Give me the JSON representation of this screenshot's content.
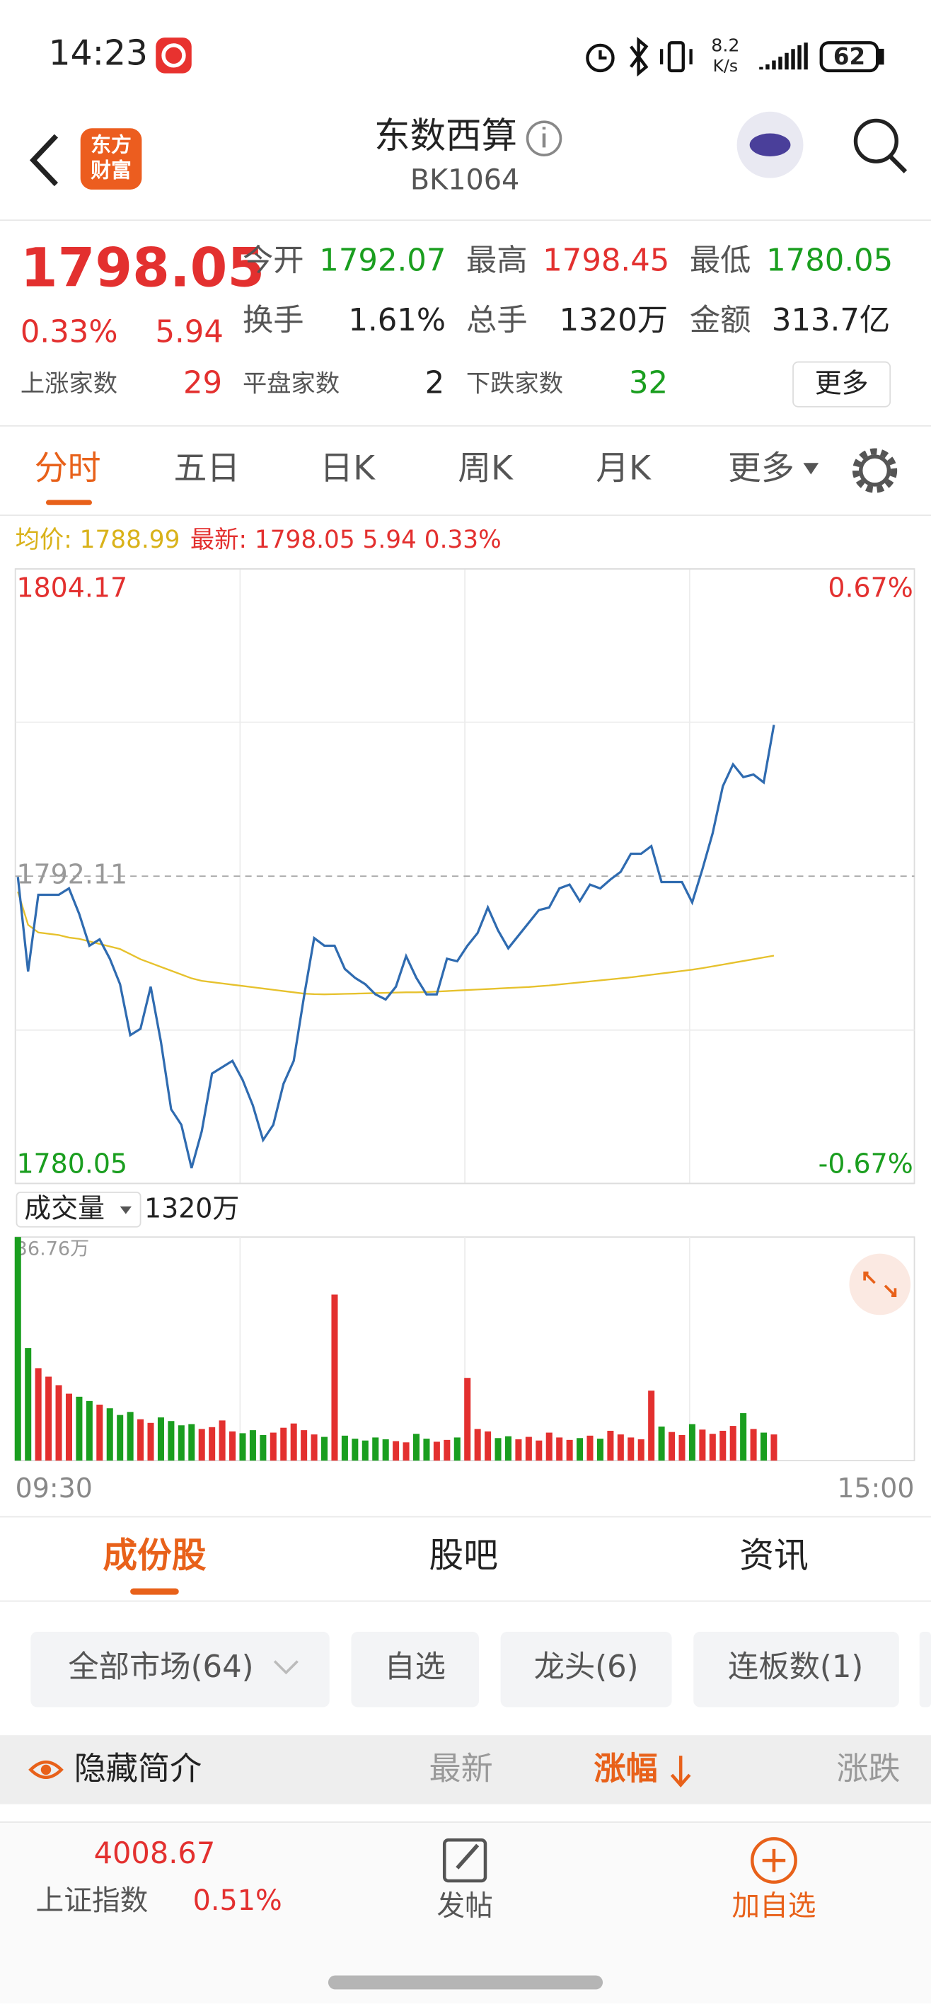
{
  "status_bar": {
    "time": "14:23",
    "net_speed": "8.2",
    "net_unit": "K/s",
    "battery": "62"
  },
  "header": {
    "logo": [
      "东方",
      "财富"
    ],
    "title": "东数西算",
    "code": "BK1064"
  },
  "quote": {
    "price": "1798.05",
    "change_pct": "0.33%",
    "change": "5.94",
    "stats": [
      {
        "label": "今开",
        "value": "1792.07"
      },
      {
        "label": "最高",
        "value": "1798.45"
      },
      {
        "label": "最低",
        "value": "1780.05"
      },
      {
        "label": "换手",
        "value": "1.61%"
      },
      {
        "label": "总手",
        "value": "1320万"
      },
      {
        "label": "金额",
        "value": "313.7亿"
      }
    ],
    "breadth": [
      {
        "label": "上涨家数",
        "value": "29"
      },
      {
        "label": "平盘家数",
        "value": "2"
      },
      {
        "label": "下跌家数",
        "value": "32"
      }
    ],
    "more": "更多"
  },
  "period_tabs": [
    "分时",
    "五日",
    "日K",
    "周K",
    "月K",
    "更多"
  ],
  "chart_data": [
    {
      "type": "line",
      "series": [
        {
          "name": "均价: 1788.99",
          "color": "#e6c12c",
          "label_color": "#d9b21a",
          "values": [
            1791.5,
            1790.2,
            1789.9,
            1789.85,
            1789.8,
            1789.7,
            1789.65,
            1789.55,
            1789.45,
            1789.35,
            1789.25,
            1789.05,
            1788.85,
            1788.7,
            1788.55,
            1788.4,
            1788.25,
            1788.1,
            1788.0,
            1787.95,
            1787.9,
            1787.85,
            1787.8,
            1787.75,
            1787.7,
            1787.65,
            1787.6,
            1787.55,
            1787.5,
            1787.48,
            1787.47,
            1787.48,
            1787.49,
            1787.5,
            1787.51,
            1787.52,
            1787.53,
            1787.54,
            1787.55,
            1787.55,
            1787.56,
            1787.58,
            1787.6,
            1787.62,
            1787.64,
            1787.66,
            1787.68,
            1787.7,
            1787.72,
            1787.74,
            1787.76,
            1787.79,
            1787.82,
            1787.86,
            1787.9,
            1787.94,
            1787.98,
            1788.02,
            1788.06,
            1788.1,
            1788.14,
            1788.19,
            1788.24,
            1788.29,
            1788.34,
            1788.39,
            1788.44,
            1788.5,
            1788.57,
            1788.64,
            1788.71,
            1788.78,
            1788.85,
            1788.92,
            1788.99
          ]
        },
        {
          "name": "最新: 1798.05 5.94 0.33%",
          "color": "#2f6bb0",
          "label_color": "#e3302f",
          "values": [
            1792.08,
            1788.37,
            1791.38,
            1791.38,
            1791.38,
            1791.63,
            1790.63,
            1789.38,
            1789.63,
            1788.87,
            1787.87,
            1785.87,
            1786.12,
            1787.77,
            1785.61,
            1782.96,
            1782.35,
            1780.65,
            1782.1,
            1784.36,
            1784.61,
            1784.86,
            1784.11,
            1783.11,
            1781.75,
            1782.35,
            1783.96,
            1784.86,
            1787.37,
            1789.68,
            1789.38,
            1789.38,
            1788.47,
            1788.12,
            1787.87,
            1787.47,
            1787.27,
            1787.77,
            1788.97,
            1788.12,
            1787.47,
            1787.47,
            1788.87,
            1788.77,
            1789.38,
            1789.88,
            1790.88,
            1789.98,
            1789.28,
            1789.78,
            1790.28,
            1790.78,
            1790.88,
            1791.63,
            1791.78,
            1791.13,
            1791.78,
            1791.63,
            1791.98,
            1792.28,
            1792.99,
            1792.99,
            1793.29,
            1791.88,
            1791.88,
            1791.88,
            1791.08,
            1792.38,
            1793.79,
            1795.64,
            1796.5,
            1796.0,
            1796.1,
            1795.79,
            1798.05
          ]
        }
      ],
      "ylim": [
        1780.05,
        1804.17
      ],
      "yticks": [
        1804.17,
        1792.11,
        1780.05
      ],
      "y2lim": [
        -0.67,
        0.67
      ],
      "y2ticks": [
        {
          "value": 0.67,
          "label": "0.67%"
        },
        {
          "value": -0.67,
          "label": "-0.67%"
        }
      ],
      "up_color": "#e3302f",
      "down_color": "#1a9e1f",
      "base_color": "#999999"
    },
    {
      "type": "bar",
      "title": "成交量",
      "subtitle": "1320万",
      "values": [
        36.76,
        18.5,
        15.2,
        13.8,
        12.4,
        11.0,
        10.5,
        9.8,
        9.2,
        8.6,
        7.5,
        8.0,
        6.8,
        6.2,
        7.1,
        6.5,
        5.8,
        6.0,
        5.2,
        5.5,
        6.6,
        4.8,
        4.5,
        5.0,
        4.2,
        4.6,
        5.4,
        6.1,
        5.0,
        4.3,
        3.9,
        27.3,
        4.1,
        3.6,
        3.3,
        3.8,
        3.5,
        3.2,
        3.0,
        4.4,
        3.6,
        3.1,
        3.4,
        3.8,
        13.6,
        5.2,
        4.8,
        3.7,
        4.0,
        3.5,
        3.9,
        3.3,
        4.6,
        3.8,
        3.4,
        3.7,
        4.1,
        3.6,
        4.9,
        4.3,
        3.8,
        3.5,
        11.5,
        5.6,
        4.7,
        4.2,
        6.0,
        5.1,
        4.4,
        4.9,
        5.7,
        7.8,
        5.2,
        4.6,
        4.3
      ],
      "ylim": [
        0,
        36.76
      ],
      "yticks": [
        {
          "value": 36.76,
          "label": "36.76万"
        }
      ],
      "x_labels": [
        "09:30",
        "15:00"
      ],
      "up_color": "#e3302f",
      "down_color": "#1a9e1f"
    }
  ],
  "list_tabs": [
    "成份股",
    "股吧",
    "资讯"
  ],
  "filters": [
    "全部市场(64)",
    "自选",
    "龙头(6)",
    "连板数(1)"
  ],
  "table_header": {
    "toggle": "隐藏简介",
    "columns": [
      "最新",
      "涨幅",
      "涨跌"
    ]
  },
  "footer": {
    "index_value": "4008.67",
    "index_name": "上证指数",
    "index_pct": "0.51%",
    "actions": [
      "发帖",
      "加自选"
    ]
  }
}
